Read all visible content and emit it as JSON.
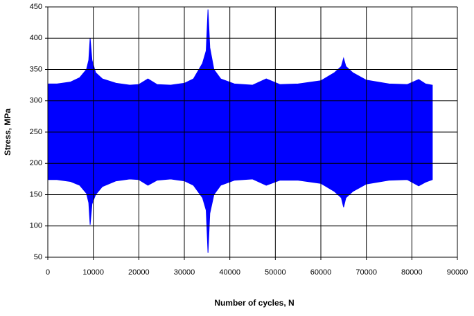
{
  "chart_data": {
    "type": "band",
    "xlabel": "Number of cycles, N",
    "ylabel": "Stress, MPa",
    "x": [
      0,
      2000,
      5000,
      7000,
      8500,
      9000,
      9300,
      9700,
      10500,
      12000,
      15000,
      18000,
      20000,
      22000,
      24000,
      27000,
      30000,
      32000,
      34000,
      34800,
      35200,
      35600,
      36500,
      38000,
      41000,
      45000,
      48000,
      51000,
      55000,
      60000,
      63000,
      64500,
      65000,
      65500,
      67000,
      70000,
      75000,
      79000,
      81500,
      83000,
      84500
    ],
    "series": [
      {
        "color": "#0000ff",
        "values": [
          327,
          327,
          330,
          337,
          350,
          365,
          400,
          365,
          345,
          335,
          328,
          325,
          326,
          335,
          326,
          325,
          328,
          335,
          360,
          380,
          446,
          385,
          350,
          335,
          327,
          325,
          335,
          326,
          327,
          332,
          345,
          355,
          368,
          355,
          345,
          333,
          327,
          326,
          334,
          327,
          325
        ]
      },
      {
        "color": "#0000ff",
        "values": [
          174,
          174,
          171,
          165,
          152,
          137,
          102,
          135,
          150,
          163,
          172,
          175,
          174,
          165,
          173,
          175,
          172,
          165,
          145,
          125,
          57,
          120,
          150,
          165,
          173,
          175,
          165,
          173,
          173,
          168,
          155,
          145,
          130,
          145,
          155,
          167,
          173,
          174,
          164,
          170,
          174
        ]
      }
    ],
    "xlim": [
      0,
      90000
    ],
    "xticks": [
      0,
      10000,
      20000,
      30000,
      40000,
      50000,
      60000,
      70000,
      80000,
      90000
    ],
    "ylim": [
      50,
      450
    ],
    "yticks": [
      50,
      100,
      150,
      200,
      250,
      300,
      350,
      400,
      450
    ],
    "grid": true
  }
}
